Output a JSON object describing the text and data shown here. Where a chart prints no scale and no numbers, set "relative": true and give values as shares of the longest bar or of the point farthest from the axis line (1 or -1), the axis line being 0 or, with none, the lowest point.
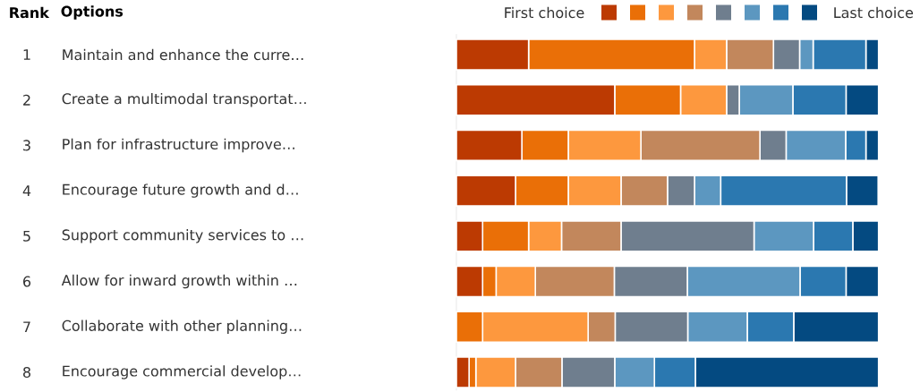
{
  "chart_data": {
    "type": "bar",
    "orientation": "horizontal",
    "stacked": true,
    "relative": true,
    "ylabel": "Options",
    "categories": [
      "Maintain and enhance the curre…",
      "Create a multimodal transportat…",
      "Plan for infrastructure improve…",
      "Encourage future growth and d…",
      "Support community services to …",
      "Allow for inward growth within …",
      "Collaborate with other planning…",
      "Encourage commercial develop…"
    ],
    "series": [
      {
        "name": "First choice",
        "color": "#bc3a02",
        "values": [
          0.171,
          0.375,
          0.155,
          0.14,
          0.062,
          0.062,
          0.0,
          0.03
        ]
      },
      {
        "color": "#ea6f07",
        "values": [
          0.393,
          0.156,
          0.11,
          0.125,
          0.109,
          0.032,
          0.062,
          0.016
        ]
      },
      {
        "color": "#fd983e",
        "values": [
          0.076,
          0.109,
          0.172,
          0.125,
          0.078,
          0.093,
          0.25,
          0.094
        ]
      },
      {
        "color": "#c2875c",
        "values": [
          0.111,
          0.0,
          0.282,
          0.11,
          0.141,
          0.187,
          0.064,
          0.11
        ]
      },
      {
        "color": "#6f7e8e",
        "values": [
          0.062,
          0.03,
          0.062,
          0.064,
          0.315,
          0.173,
          0.172,
          0.125
        ]
      },
      {
        "color": "#5c97c0",
        "values": [
          0.032,
          0.127,
          0.141,
          0.062,
          0.141,
          0.267,
          0.141,
          0.094
        ]
      },
      {
        "color": "#2b78b0",
        "values": [
          0.125,
          0.126,
          0.048,
          0.298,
          0.093,
          0.109,
          0.11,
          0.097
        ]
      },
      {
        "name": "Last choice",
        "color": "#044a81",
        "values": [
          0.03,
          0.077,
          0.03,
          0.075,
          0.061,
          0.077,
          0.201,
          0.434
        ]
      }
    ],
    "legend": "top right",
    "annotations": [
      "Rank",
      "1",
      "2",
      "3",
      "4",
      "5",
      "6",
      "7",
      "8"
    ]
  }
}
